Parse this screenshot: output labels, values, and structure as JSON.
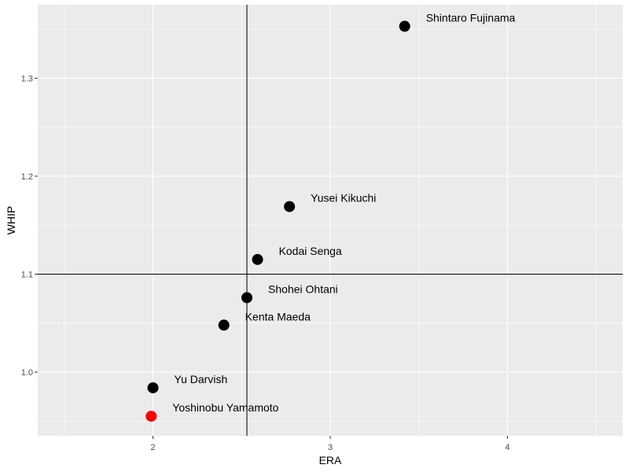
{
  "chart_data": {
    "type": "scatter",
    "title": "",
    "xlabel": "ERA",
    "ylabel": "WHIP",
    "xlim": [
      1.35,
      4.65
    ],
    "ylim": [
      0.935,
      1.375
    ],
    "x_ticks": [
      2,
      3,
      4
    ],
    "y_ticks": [
      1.0,
      1.1,
      1.2,
      1.3
    ],
    "x_tick_labels": [
      "2",
      "3",
      "4"
    ],
    "y_tick_labels": [
      "1.0",
      "1.1",
      "1.2",
      "1.3"
    ],
    "grid": true,
    "reference_lines": {
      "vertical_x": 2.53,
      "horizontal_y": 1.1
    },
    "colors": {
      "panel": "#ebebeb",
      "grid": "#ffffff",
      "point": "#000000",
      "highlight": "#ff0000"
    },
    "points": [
      {
        "label": "Shintaro Fujinama",
        "x": 3.42,
        "y": 1.353,
        "highlight": false
      },
      {
        "label": "Yusei Kikuchi",
        "x": 2.77,
        "y": 1.169,
        "highlight": false
      },
      {
        "label": "Kodai Senga",
        "x": 2.59,
        "y": 1.115,
        "highlight": false
      },
      {
        "label": "Shohei Ohtani",
        "x": 2.53,
        "y": 1.076,
        "highlight": false
      },
      {
        "label": "Kenta Maeda",
        "x": 2.4,
        "y": 1.048,
        "highlight": false
      },
      {
        "label": "Yu Darvish",
        "x": 2.0,
        "y": 0.984,
        "highlight": false
      },
      {
        "label": "Yoshinobu Yamamoto",
        "x": 1.99,
        "y": 0.955,
        "highlight": true
      }
    ]
  }
}
